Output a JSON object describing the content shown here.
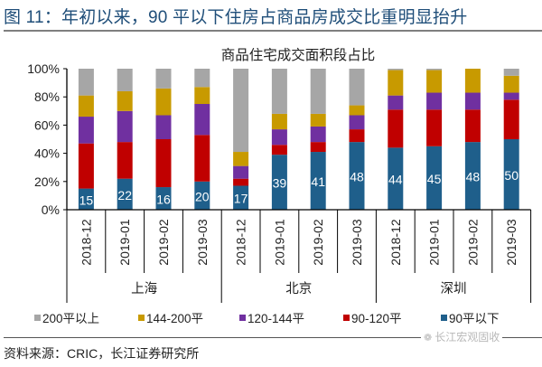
{
  "figure": {
    "title": "图 11：年初以来，90 平以下住房占商品房成交比重明显抬升",
    "source": "资料来源：CRIC，长江证券研究所",
    "watermark": "长江宏观固收",
    "watermark_icon": "wechat-icon"
  },
  "chart_data": {
    "type": "bar",
    "stacked": true,
    "percent": true,
    "title": "商品住宅成交面积段占比",
    "xlabel": "",
    "ylabel": "",
    "ylim": [
      0,
      100
    ],
    "yticks": [
      "0%",
      "20%",
      "40%",
      "60%",
      "80%",
      "100%"
    ],
    "grid": false,
    "legend_position": "bottom",
    "groups": [
      {
        "name": "上海",
        "categories": [
          "2018-12",
          "2019-01",
          "2019-02",
          "2019-03"
        ]
      },
      {
        "name": "北京",
        "categories": [
          "2018-12",
          "2019-01",
          "2019-02",
          "2019-03"
        ]
      },
      {
        "name": "深圳",
        "categories": [
          "2018-12",
          "2019-01",
          "2019-02",
          "2019-03"
        ]
      }
    ],
    "categories": [
      "2018-12",
      "2019-01",
      "2019-02",
      "2019-03",
      "2018-12",
      "2019-01",
      "2019-02",
      "2019-03",
      "2018-12",
      "2019-01",
      "2019-02",
      "2019-03"
    ],
    "series": [
      {
        "name": "90平以下",
        "color": "#1f5f8b",
        "values": [
          15,
          22,
          16,
          20,
          17,
          39,
          41,
          48,
          44,
          45,
          48,
          50
        ],
        "labels": [
          "15",
          "22",
          "16",
          "20",
          "17",
          "39",
          "41",
          "48",
          "44",
          "45",
          "48",
          "50"
        ]
      },
      {
        "name": "90-120平",
        "color": "#c00000",
        "values": [
          32,
          26,
          34,
          33,
          5,
          7,
          7,
          9,
          27,
          26,
          23,
          28
        ]
      },
      {
        "name": "120-144平",
        "color": "#7030a0",
        "values": [
          19,
          22,
          17,
          22,
          9,
          11,
          11,
          10,
          10,
          12,
          12,
          5
        ]
      },
      {
        "name": "144-200平",
        "color": "#c89a00",
        "values": [
          15,
          14,
          19,
          12,
          10,
          11,
          9,
          7,
          18,
          16,
          17,
          12
        ]
      },
      {
        "name": "200平以上",
        "color": "#a6a6a6",
        "values": [
          19,
          16,
          14,
          13,
          59,
          32,
          32,
          26,
          1,
          1,
          0,
          5
        ]
      }
    ],
    "legend_order": [
      "200平以上",
      "144-200平",
      "120-144平",
      "90-120平",
      "90平以下"
    ]
  }
}
